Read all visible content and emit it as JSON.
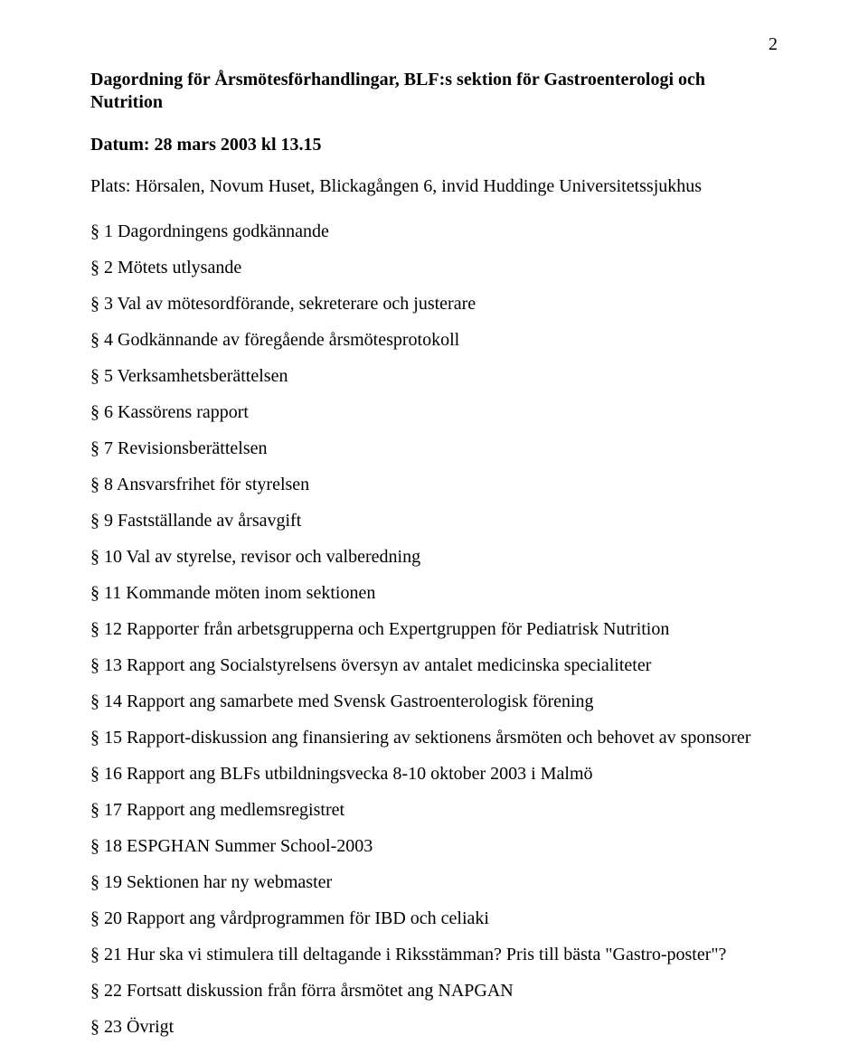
{
  "pageNumber": "2",
  "title1": "Dagordning för Årsmötesförhandlingar, BLF:s sektion för Gastroenterologi och",
  "title2": "Nutrition",
  "dateLine": "Datum: 28 mars 2003 kl 13.15",
  "venueLine": "Plats: Hörsalen, Novum Huset, Blickagången 6, invid Huddinge Universitetssjukhus",
  "items": [
    "§ 1 Dagordningens godkännande",
    "§ 2 Mötets utlysande",
    "§ 3 Val av mötesordförande, sekreterare och justerare",
    "§ 4 Godkännande av föregående årsmötesprotokoll",
    "§ 5 Verksamhetsberättelsen",
    "§ 6 Kassörens rapport",
    "§ 7 Revisionsberättelsen",
    "§ 8 Ansvarsfrihet för styrelsen",
    "§ 9 Fastställande av årsavgift",
    "§ 10 Val av styrelse, revisor och valberedning",
    "§ 11 Kommande möten inom sektionen",
    "§ 12 Rapporter från arbetsgrupperna och Expertgruppen för Pediatrisk Nutrition",
    "§ 13 Rapport ang Socialstyrelsens översyn av antalet medicinska specialiteter",
    "§ 14 Rapport ang samarbete med Svensk Gastroenterologisk förening",
    "§ 15 Rapport-diskussion ang finansiering av sektionens årsmöten och behovet av sponsorer",
    "§ 16 Rapport ang BLFs utbildningsvecka 8-10 oktober 2003 i Malmö",
    "§ 17 Rapport ang medlemsregistret",
    "§ 18 ESPGHAN Summer School-2003",
    "§ 19 Sektionen har ny webmaster",
    "§ 20 Rapport ang vårdprogrammen för IBD och celiaki",
    "§ 21 Hur ska vi stimulera till deltagande i Riksstämman? Pris till bästa \"Gastro-poster\"?",
    "§ 22 Fortsatt diskussion från förra årsmötet ang NAPGAN",
    "§ 23 Övrigt"
  ]
}
